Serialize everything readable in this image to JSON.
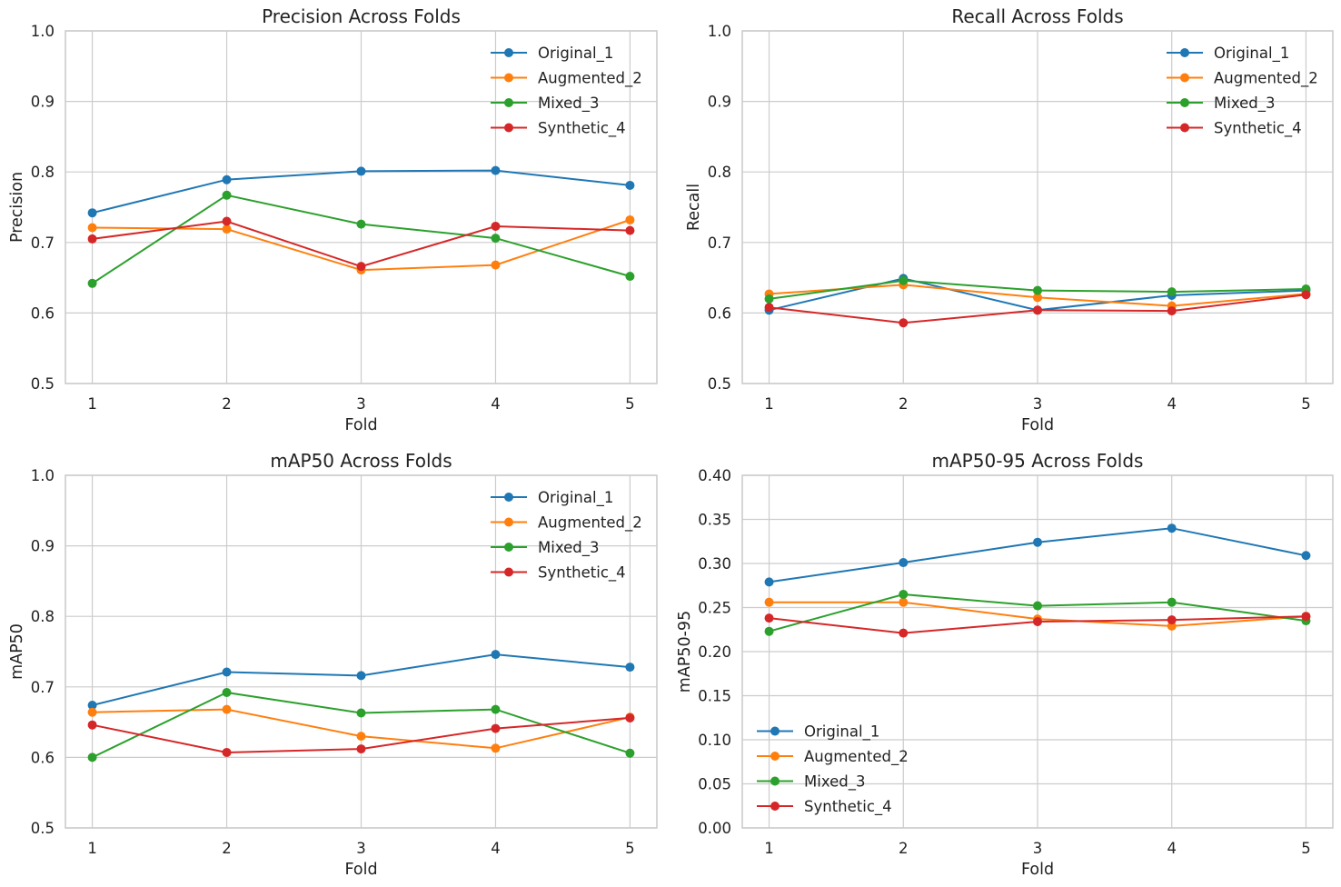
{
  "chart_data": [
    {
      "type": "line",
      "title": "Precision Across Folds",
      "xlabel": "Fold",
      "ylabel": "Precision",
      "x": [
        1,
        2,
        3,
        4,
        5
      ],
      "xticks": [
        "1",
        "2",
        "3",
        "4",
        "5"
      ],
      "ylim": [
        0.5,
        1.0
      ],
      "yticks": [
        "0.5",
        "0.6",
        "0.7",
        "0.8",
        "0.9",
        "1.0"
      ],
      "grid": true,
      "legend": "upper right",
      "series": [
        {
          "name": "Original_1",
          "color": "#1f77b4",
          "values": [
            0.742,
            0.789,
            0.801,
            0.802,
            0.781
          ]
        },
        {
          "name": "Augmented_2",
          "color": "#ff7f0e",
          "values": [
            0.721,
            0.719,
            0.661,
            0.668,
            0.732
          ]
        },
        {
          "name": "Mixed_3",
          "color": "#2ca02c",
          "values": [
            0.642,
            0.767,
            0.726,
            0.706,
            0.652
          ]
        },
        {
          "name": "Synthetic_4",
          "color": "#d62728",
          "values": [
            0.705,
            0.73,
            0.666,
            0.723,
            0.717
          ]
        }
      ]
    },
    {
      "type": "line",
      "title": "Recall Across Folds",
      "xlabel": "Fold",
      "ylabel": "Recall",
      "x": [
        1,
        2,
        3,
        4,
        5
      ],
      "xticks": [
        "1",
        "2",
        "3",
        "4",
        "5"
      ],
      "ylim": [
        0.5,
        1.0
      ],
      "yticks": [
        "0.5",
        "0.6",
        "0.7",
        "0.8",
        "0.9",
        "1.0"
      ],
      "grid": true,
      "legend": "upper right",
      "series": [
        {
          "name": "Original_1",
          "color": "#1f77b4",
          "values": [
            0.604,
            0.649,
            0.604,
            0.625,
            0.632
          ]
        },
        {
          "name": "Augmented_2",
          "color": "#ff7f0e",
          "values": [
            0.627,
            0.64,
            0.622,
            0.61,
            0.627
          ]
        },
        {
          "name": "Mixed_3",
          "color": "#2ca02c",
          "values": [
            0.62,
            0.646,
            0.632,
            0.63,
            0.634
          ]
        },
        {
          "name": "Synthetic_4",
          "color": "#d62728",
          "values": [
            0.608,
            0.586,
            0.604,
            0.603,
            0.626
          ]
        }
      ]
    },
    {
      "type": "line",
      "title": "mAP50 Across Folds",
      "xlabel": "Fold",
      "ylabel": "mAP50",
      "x": [
        1,
        2,
        3,
        4,
        5
      ],
      "xticks": [
        "1",
        "2",
        "3",
        "4",
        "5"
      ],
      "ylim": [
        0.5,
        1.0
      ],
      "yticks": [
        "0.5",
        "0.6",
        "0.7",
        "0.8",
        "0.9",
        "1.0"
      ],
      "grid": true,
      "legend": "upper right",
      "series": [
        {
          "name": "Original_1",
          "color": "#1f77b4",
          "values": [
            0.674,
            0.721,
            0.716,
            0.746,
            0.728
          ]
        },
        {
          "name": "Augmented_2",
          "color": "#ff7f0e",
          "values": [
            0.664,
            0.668,
            0.63,
            0.613,
            0.657
          ]
        },
        {
          "name": "Mixed_3",
          "color": "#2ca02c",
          "values": [
            0.6,
            0.692,
            0.663,
            0.668,
            0.606
          ]
        },
        {
          "name": "Synthetic_4",
          "color": "#d62728",
          "values": [
            0.646,
            0.607,
            0.612,
            0.641,
            0.656
          ]
        }
      ]
    },
    {
      "type": "line",
      "title": "mAP50-95 Across Folds",
      "xlabel": "Fold",
      "ylabel": "mAP50-95",
      "x": [
        1,
        2,
        3,
        4,
        5
      ],
      "xticks": [
        "1",
        "2",
        "3",
        "4",
        "5"
      ],
      "ylim": [
        0.0,
        0.4
      ],
      "yticks": [
        "0.00",
        "0.05",
        "0.10",
        "0.15",
        "0.20",
        "0.25",
        "0.30",
        "0.35",
        "0.40"
      ],
      "grid": true,
      "legend": "lower left",
      "series": [
        {
          "name": "Original_1",
          "color": "#1f77b4",
          "values": [
            0.279,
            0.301,
            0.324,
            0.34,
            0.309
          ]
        },
        {
          "name": "Augmented_2",
          "color": "#ff7f0e",
          "values": [
            0.256,
            0.256,
            0.237,
            0.229,
            0.24
          ]
        },
        {
          "name": "Mixed_3",
          "color": "#2ca02c",
          "values": [
            0.223,
            0.265,
            0.252,
            0.256,
            0.235
          ]
        },
        {
          "name": "Synthetic_4",
          "color": "#d62728",
          "values": [
            0.238,
            0.221,
            0.234,
            0.236,
            0.24
          ]
        }
      ]
    }
  ]
}
